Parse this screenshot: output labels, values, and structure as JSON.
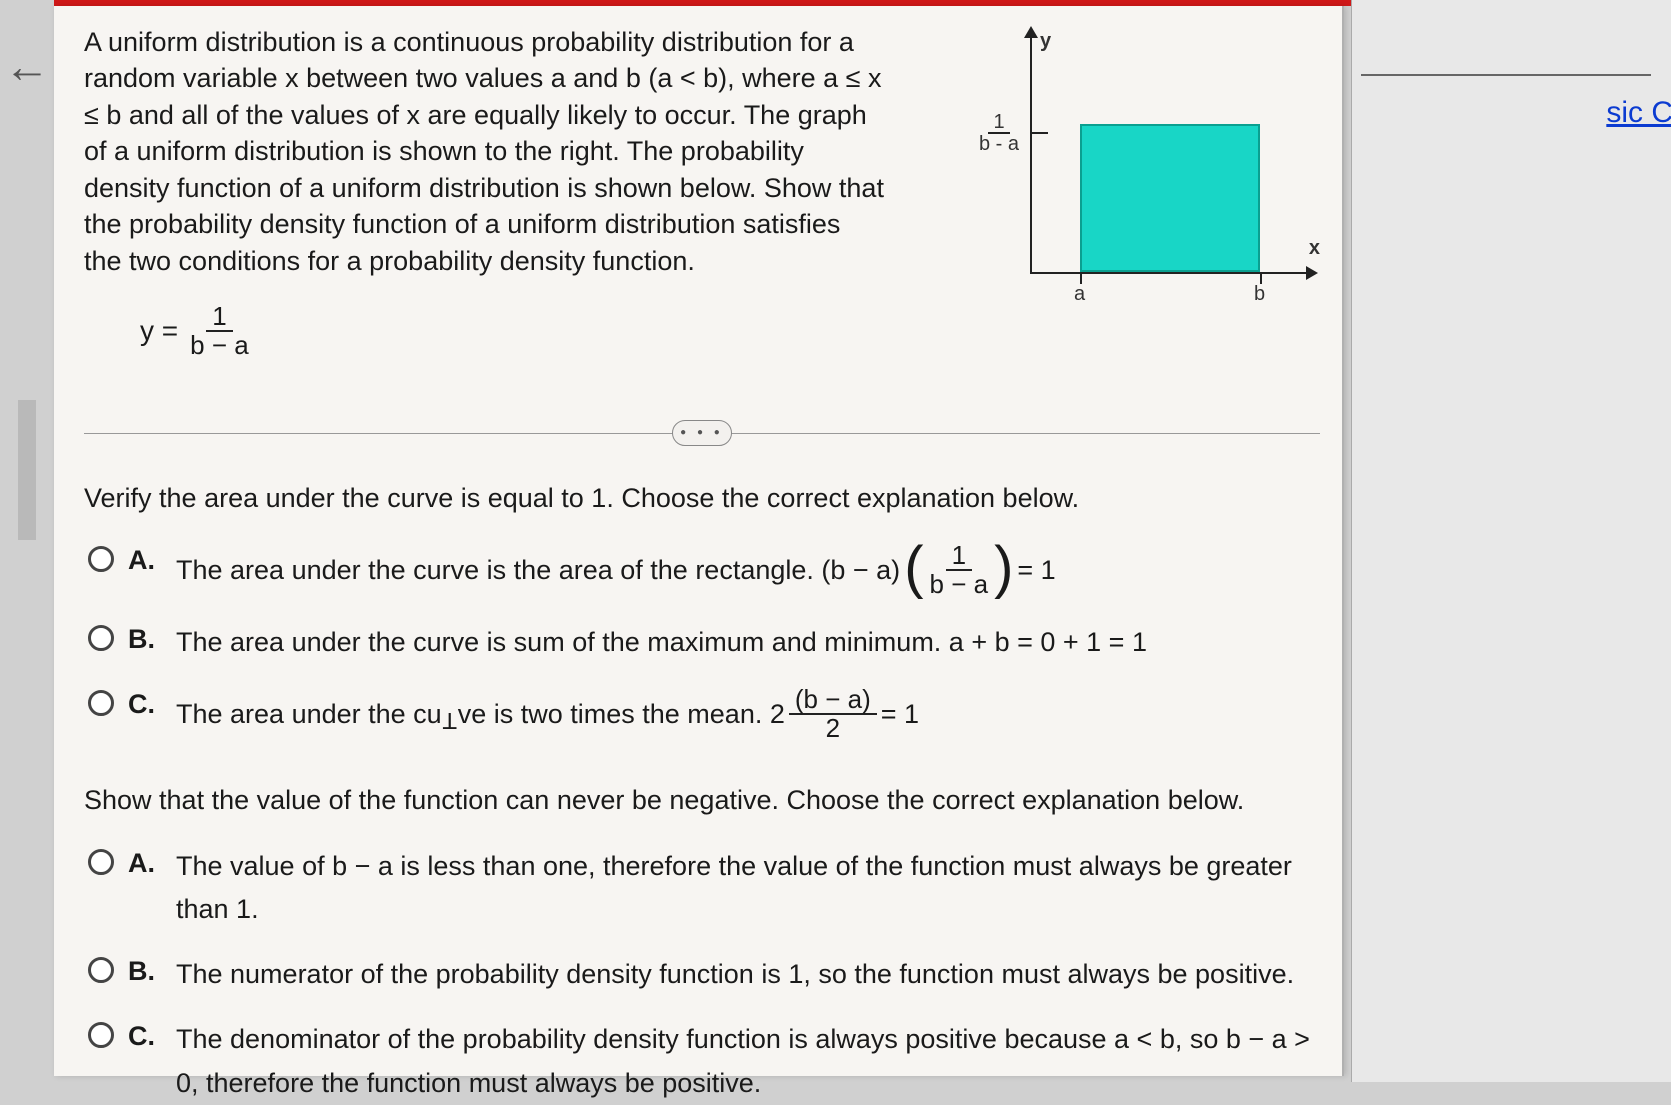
{
  "problem": {
    "text": "A uniform distribution is a continuous probability distribution for a random variable x between two values a and b (a < b), where a ≤ x ≤ b and all of the values of x are equally likely to occur. The graph of a uniform distribution is shown to the right. The probability density function of a uniform distribution is shown below. Show that the probability density function of a uniform distribution satisfies the two conditions for a probability density function.",
    "equation_lhs": "y =",
    "equation_frac_num": "1",
    "equation_frac_den": "b − a"
  },
  "graph": {
    "y_label": "y",
    "x_label": "x",
    "tick_a": "a",
    "tick_b": "b",
    "height_frac_num": "1",
    "height_frac_den": "b - a",
    "rect_color": "#18d6c6",
    "rect_border": "#0aa090",
    "axis_color": "#222222",
    "background": "#f7f5f2"
  },
  "divider_dots": "● ● ●",
  "q1": {
    "prompt": "Verify the area under the curve is equal to 1. Choose the correct explanation below.",
    "A_pre": "The area under the curve is the area of the rectangle. (b − a)",
    "A_frac_num": "1",
    "A_frac_den": "b − a",
    "A_post": " = 1",
    "B": "The area under the curve is sum of the maximum and minimum. a + b = 0 + 1 = 1",
    "C_pre": "The area under the curve is two times the mean. 2",
    "C_frac_num": "(b − a)",
    "C_frac_den": "2",
    "C_post": " = 1"
  },
  "q2": {
    "prompt": "Show that the value of the function can never be negative. Choose the correct explanation below.",
    "A": "The value of b − a is less than one, therefore the value of the function must always be greater than 1.",
    "B": "The numerator of the probability density function is 1, so the function must always be positive.",
    "C": "The denominator of the probability density function is always positive because a < b, so b − a > 0, therefore the function must always be positive."
  },
  "letters": {
    "A": "A.",
    "B": "B.",
    "C": "C."
  },
  "right_panel_stub": "sic C",
  "back_arrow": "←",
  "cursor_word_before": "cu",
  "cursor_word_after": "ve"
}
